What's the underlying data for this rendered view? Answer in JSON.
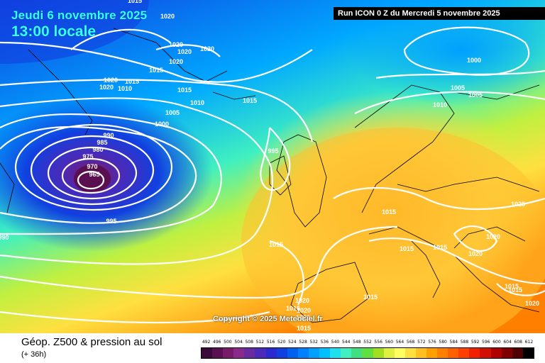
{
  "header": {
    "date": "Jeudi 6 novembre 2025",
    "time": "13:00 locale",
    "run": "Run ICON 0 Z du Mercredi 5 novembre 2025"
  },
  "copyright": "Copyright © 2025 Meteociel.fr",
  "legend": {
    "title": "Géop. Z500 & pression au sol",
    "subtitle": "(+ 36h)",
    "scale": [
      "492",
      "496",
      "500",
      "504",
      "508",
      "512",
      "516",
      "520",
      "524",
      "528",
      "532",
      "536",
      "540",
      "544",
      "548",
      "552",
      "556",
      "560",
      "564",
      "568",
      "572",
      "576",
      "580",
      "584",
      "588",
      "592",
      "596",
      "600",
      "604",
      "608",
      "612"
    ],
    "colors": [
      "#3a0a3a",
      "#5a1050",
      "#7a1a6a",
      "#8a2a8a",
      "#6a2aa0",
      "#4a2ab8",
      "#2a2ad0",
      "#1040e0",
      "#0060f0",
      "#0080ff",
      "#00a0ff",
      "#00c0ff",
      "#20e0f0",
      "#40f0c0",
      "#40e080",
      "#60e040",
      "#a0e020",
      "#e0f040",
      "#ffff60",
      "#ffe040",
      "#ffc020",
      "#ffa000",
      "#ff8000",
      "#ff6000",
      "#ff4000",
      "#f02000",
      "#d01000",
      "#b00000",
      "#800000",
      "#500000",
      "#000000"
    ]
  },
  "isobars": [
    {
      "text": "1015"
    },
    {
      "text": "1020"
    },
    {
      "text": "1020"
    },
    {
      "text": "1020"
    },
    {
      "text": "1020"
    },
    {
      "text": "1020"
    },
    {
      "text": "1015"
    },
    {
      "text": "1020"
    },
    {
      "text": "1015"
    },
    {
      "text": "1010"
    },
    {
      "text": "1015"
    },
    {
      "text": "1020"
    },
    {
      "text": "1015"
    },
    {
      "text": "1010"
    },
    {
      "text": "1005"
    },
    {
      "text": "1000"
    },
    {
      "text": "990"
    },
    {
      "text": "985"
    },
    {
      "text": "980"
    },
    {
      "text": "975"
    },
    {
      "text": "970"
    },
    {
      "text": "965"
    },
    {
      "text": "995"
    },
    {
      "text": "995"
    },
    {
      "text": "1000"
    },
    {
      "text": "1005"
    },
    {
      "text": "1005"
    },
    {
      "text": "1010"
    },
    {
      "text": "1015"
    },
    {
      "text": "1025"
    },
    {
      "text": "1015"
    },
    {
      "text": "1015"
    },
    {
      "text": "1020"
    },
    {
      "text": "1020"
    },
    {
      "text": "1015"
    },
    {
      "text": "1020"
    },
    {
      "text": "1015"
    },
    {
      "text": "1015"
    },
    {
      "text": "1020"
    },
    {
      "text": "1020"
    },
    {
      "text": "1015"
    },
    {
      "text": "1015"
    },
    {
      "text": "1015"
    },
    {
      "text": "1020"
    },
    {
      "text": "990"
    }
  ]
}
